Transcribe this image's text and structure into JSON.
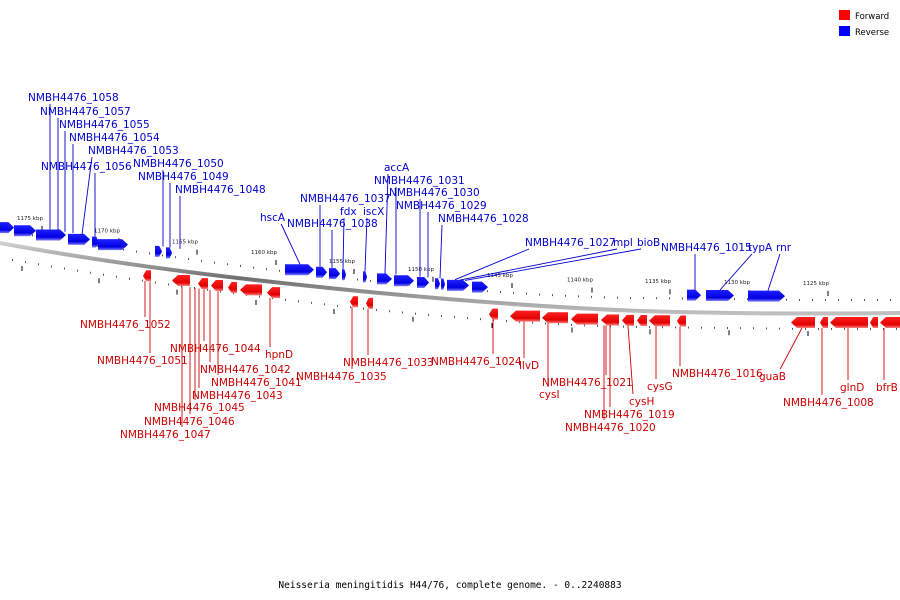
{
  "legend": {
    "forward_label": "Forward",
    "reverse_label": "Reverse",
    "forward_color": "#ff0000",
    "reverse_color": "#0000ff"
  },
  "caption": "Neisseria meningitidis H44/76, complete genome. - 0..2240883",
  "colors": {
    "forward_fill": "#ff0000",
    "reverse_fill": "#0000ff",
    "backbone": "#808080",
    "forward_text": "#cc0000",
    "reverse_text": "#0000cc"
  },
  "ticks": [
    "1175 kbp",
    "1170 kbp",
    "1165 kbp",
    "1160 kbp",
    "1155 kbp",
    "1150 kbp",
    "1145 kbp",
    "1140 kbp",
    "1135 kbp",
    "1130 kbp",
    "1125 kbp"
  ],
  "reverse_labels": [
    "NMBH4476_1058",
    "NMBH4476_1057",
    "NMBH4476_1055",
    "NMBH4476_1054",
    "NMBH4476_1053",
    "NMBH4476_1056",
    "NMBH4476_1050",
    "NMBH4476_1049",
    "NMBH4476_1048",
    "hscA",
    "NMBH4476_1037",
    "NMBH4476_1038",
    "fdx",
    "iscX",
    "accA",
    "NMBH4476_1031",
    "NMBH4476_1030",
    "NMBH4476_1029",
    "NMBH4476_1028",
    "NMBH4476_1027",
    "mpl",
    "bioB",
    "NMBH4476_1015",
    "typA",
    "rnr"
  ],
  "forward_labels": [
    "NMBH4476_1052",
    "NMBH4476_1051",
    "NMBH4476_1044",
    "NMBH4476_1042",
    "NMBH4476_1041",
    "NMBH4476_1043",
    "NMBH4476_1045",
    "NMBH4476_1046",
    "NMBH4476_1047",
    "hpnD",
    "NMBH4476_1035",
    "NMBH4476_1033",
    "NMBH4476_1024",
    "ilvD",
    "cysI",
    "NMBH4476_1021",
    "NMBH4476_1019",
    "NMBH4476_1020",
    "cysH",
    "cysG",
    "NMBH4476_1016",
    "guaB",
    "NMBH4476_1008",
    "glnD",
    "bfrB"
  ]
}
